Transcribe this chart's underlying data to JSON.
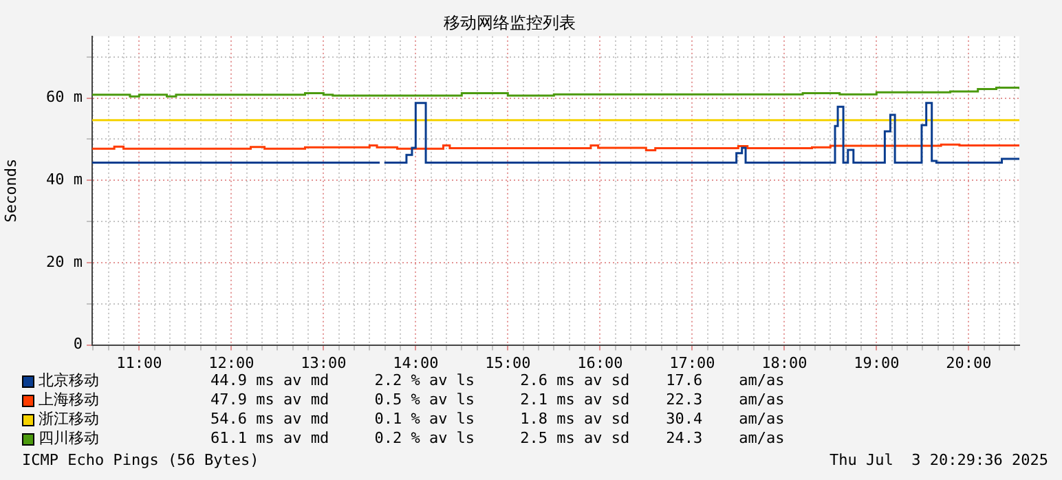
{
  "chart_data": {
    "type": "step",
    "title": "移动网络监控列表",
    "ylabel": "Seconds",
    "xlim": [
      10.49,
      20.55
    ],
    "xticks": [
      {
        "value": 10.5,
        "label": null
      },
      {
        "value": 10.6667,
        "label": null
      },
      {
        "value": 10.8333,
        "label": null
      },
      {
        "value": 11,
        "label": "11:00"
      },
      {
        "value": 11.1667,
        "label": null
      },
      {
        "value": 11.3333,
        "label": null
      },
      {
        "value": 11.5,
        "label": null
      },
      {
        "value": 11.6667,
        "label": null
      },
      {
        "value": 11.8333,
        "label": null
      },
      {
        "value": 12,
        "label": "12:00"
      },
      {
        "value": 12.1667,
        "label": null
      },
      {
        "value": 12.3333,
        "label": null
      },
      {
        "value": 12.5,
        "label": null
      },
      {
        "value": 12.6667,
        "label": null
      },
      {
        "value": 12.8333,
        "label": null
      },
      {
        "value": 13,
        "label": "13:00"
      },
      {
        "value": 13.1667,
        "label": null
      },
      {
        "value": 13.3333,
        "label": null
      },
      {
        "value": 13.5,
        "label": null
      },
      {
        "value": 13.6667,
        "label": null
      },
      {
        "value": 13.8333,
        "label": null
      },
      {
        "value": 14,
        "label": "14:00"
      },
      {
        "value": 14.1667,
        "label": null
      },
      {
        "value": 14.3333,
        "label": null
      },
      {
        "value": 14.5,
        "label": null
      },
      {
        "value": 14.6667,
        "label": null
      },
      {
        "value": 14.8333,
        "label": null
      },
      {
        "value": 15,
        "label": "15:00"
      },
      {
        "value": 15.1667,
        "label": null
      },
      {
        "value": 15.3333,
        "label": null
      },
      {
        "value": 15.5,
        "label": null
      },
      {
        "value": 15.6667,
        "label": null
      },
      {
        "value": 15.8333,
        "label": null
      },
      {
        "value": 16,
        "label": "16:00"
      },
      {
        "value": 16.1667,
        "label": null
      },
      {
        "value": 16.3333,
        "label": null
      },
      {
        "value": 16.5,
        "label": null
      },
      {
        "value": 16.6667,
        "label": null
      },
      {
        "value": 16.8333,
        "label": null
      },
      {
        "value": 17,
        "label": "17:00"
      },
      {
        "value": 17.1667,
        "label": null
      },
      {
        "value": 17.3333,
        "label": null
      },
      {
        "value": 17.5,
        "label": null
      },
      {
        "value": 17.6667,
        "label": null
      },
      {
        "value": 17.8333,
        "label": null
      },
      {
        "value": 18,
        "label": "18:00"
      },
      {
        "value": 18.1667,
        "label": null
      },
      {
        "value": 18.3333,
        "label": null
      },
      {
        "value": 18.5,
        "label": null
      },
      {
        "value": 18.6667,
        "label": null
      },
      {
        "value": 18.8333,
        "label": null
      },
      {
        "value": 19,
        "label": "19:00"
      },
      {
        "value": 19.1667,
        "label": null
      },
      {
        "value": 19.3333,
        "label": null
      },
      {
        "value": 19.5,
        "label": null
      },
      {
        "value": 19.6667,
        "label": null
      },
      {
        "value": 19.8333,
        "label": null
      },
      {
        "value": 20,
        "label": "20:00"
      },
      {
        "value": 20.1667,
        "label": null
      },
      {
        "value": 20.3333,
        "label": null
      },
      {
        "value": 20.5,
        "label": null
      }
    ],
    "ylim": [
      0,
      75
    ],
    "yticks": [
      0,
      {
        "value": 10,
        "label": null
      },
      {
        "value": 20,
        "label": "20 m"
      },
      {
        "value": 30,
        "label": null
      },
      {
        "value": 40,
        "label": "40 m"
      },
      {
        "value": 50,
        "label": null
      },
      {
        "value": 60,
        "label": "60 m"
      },
      {
        "value": 70,
        "label": null
      }
    ],
    "grid": true,
    "legend": "bottom",
    "series": [
      {
        "name": "北京移动",
        "color": "#0a3d8f",
        "x": [
          10.49,
          13.61,
          13.63,
          13.66,
          13.9,
          13.96,
          14.0,
          14.11,
          17.48,
          17.54,
          17.58,
          18.55,
          18.58,
          18.64,
          18.69,
          18.75,
          19.09,
          19.15,
          19.2,
          19.49,
          19.54,
          19.6,
          19.65,
          20.36,
          20.55
        ],
        "values": [
          44.3,
          44.3,
          null,
          44.3,
          46.2,
          47.9,
          58.8,
          44.3,
          46.6,
          47.9,
          44.3,
          53.2,
          57.9,
          44.3,
          47.4,
          44.3,
          51.9,
          55.9,
          44.3,
          53.4,
          58.8,
          44.7,
          44.3,
          45.2,
          45.2
        ]
      },
      {
        "name": "上海移动",
        "color": "#ff3c00",
        "x": [
          10.49,
          10.73,
          10.83,
          12.21,
          12.36,
          12.8,
          13.5,
          13.58,
          13.8,
          14.3,
          14.37,
          15.9,
          15.98,
          16.5,
          16.6,
          17.5,
          17.6,
          18.3,
          18.5,
          19.7,
          19.9,
          20.55
        ],
        "values": [
          47.7,
          48.2,
          47.7,
          48.1,
          47.7,
          48.0,
          48.5,
          48.0,
          47.7,
          48.5,
          47.8,
          48.5,
          47.9,
          47.3,
          47.8,
          48.3,
          47.8,
          48.0,
          48.4,
          48.7,
          48.5,
          48.5
        ]
      },
      {
        "name": "浙江移动",
        "color": "#f5d200",
        "x": [
          10.49,
          20.55
        ],
        "values": [
          54.6,
          54.6
        ]
      },
      {
        "name": "四川移动",
        "color": "#4c9a0e",
        "x": [
          10.49,
          10.9,
          11.0,
          11.3,
          11.4,
          12.8,
          13.0,
          13.1,
          14.5,
          15.0,
          15.5,
          16.5,
          17.5,
          18.2,
          18.6,
          19.0,
          19.5,
          19.8,
          20.1,
          20.3,
          20.55
        ],
        "values": [
          60.8,
          60.4,
          60.8,
          60.4,
          60.8,
          61.2,
          60.8,
          60.6,
          61.2,
          60.6,
          60.9,
          60.9,
          60.9,
          61.2,
          60.9,
          61.4,
          61.4,
          61.6,
          62.2,
          62.5,
          62.2
        ]
      }
    ],
    "annotations": [
      "44.9 ms av md     2.2 % av ls     2.6 ms av sd    17.6    am/as",
      "47.9 ms av md     0.5 % av ls     2.1 ms av sd    22.3    am/as",
      "54.6 ms av md     0.1 % av ls     1.8 ms av sd    30.4    am/as",
      "61.1 ms av md     0.2 % av ls     2.5 ms av sd    24.3    am/as",
      "ICMP Echo Pings (56 Bytes)",
      "Thu Jul  3 20:29:36 2025"
    ]
  }
}
